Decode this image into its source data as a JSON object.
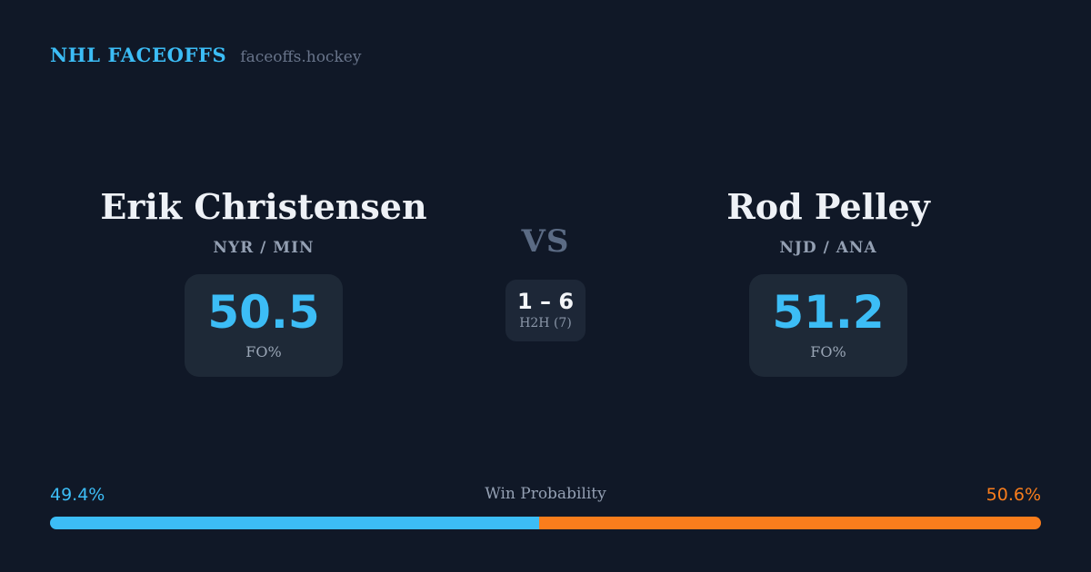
{
  "header": {
    "brand": "NHL FACEOFFS",
    "site": "faceoffs.hockey"
  },
  "matchup": {
    "vs_label": "VS",
    "h2h": {
      "score": "1 – 6",
      "label": "H2H (7)"
    },
    "players": [
      {
        "name": "Erik Christensen",
        "teams": "NYR / MIN",
        "stat_value": "50.5",
        "stat_label": "FO%"
      },
      {
        "name": "Rod Pelley",
        "teams": "NJD / ANA",
        "stat_value": "51.2",
        "stat_label": "FO%"
      }
    ]
  },
  "win_probability": {
    "title": "Win Probability",
    "left_label": "49.4%",
    "right_label": "50.6%",
    "left_value": 49.4,
    "right_value": 50.6
  },
  "colors": {
    "background": "#101827",
    "card": "#1e2937",
    "accent_blue": "#3cbdf6",
    "accent_orange": "#f97d1c"
  }
}
